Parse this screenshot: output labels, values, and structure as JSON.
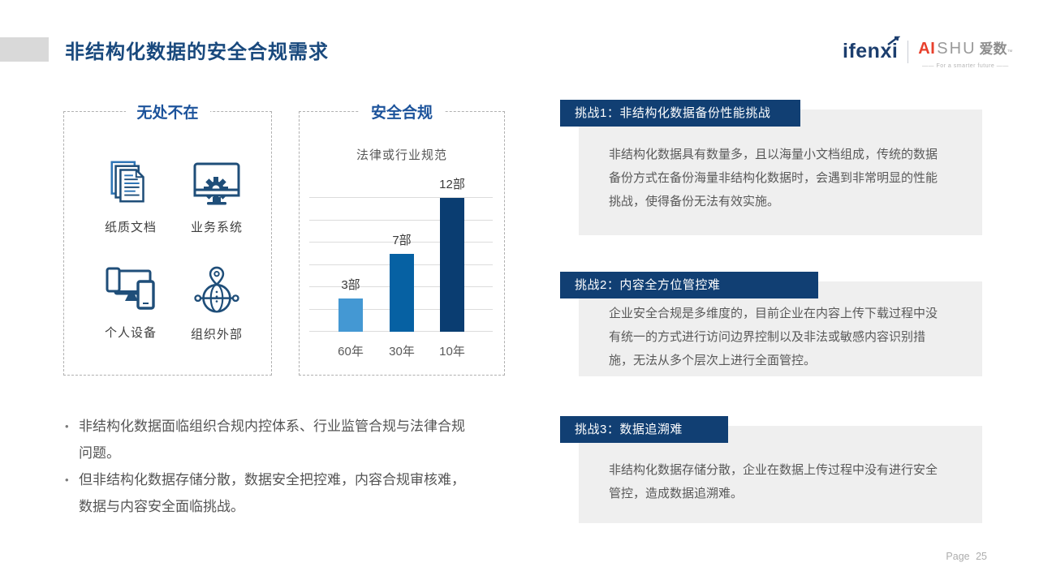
{
  "slide": {
    "title": "非结构化数据的安全合规需求",
    "page_label": "Page 25"
  },
  "logos": {
    "ifenxi": "ifenxi",
    "aishu_ai": "AI",
    "aishu_shu": "SHU",
    "aishu_cn": "爱数",
    "aishu_mark": "™",
    "aishu_tagline": "—— For a smarter future ——"
  },
  "panels": {
    "everywhere": {
      "title": "无处不在",
      "items": [
        {
          "icon": "documents-icon",
          "label": "纸质文档"
        },
        {
          "icon": "business-system-icon",
          "label": "业务系统"
        },
        {
          "icon": "personal-devices-icon",
          "label": "个人设备"
        },
        {
          "icon": "external-organization-icon",
          "label": "组织外部"
        }
      ]
    },
    "compliance": {
      "title": "安全合规"
    }
  },
  "chart_data": {
    "type": "bar",
    "title": "法律或行业规范",
    "categories": [
      "60年",
      "30年",
      "10年"
    ],
    "values": [
      3,
      7,
      12
    ],
    "value_labels": [
      "3部",
      "7部",
      "12部"
    ],
    "bar_colors": [
      "#4498D3",
      "#0661A3",
      "#0A3D71"
    ],
    "ylim": [
      0,
      12
    ],
    "gridlines": [
      0,
      2,
      4,
      6,
      8,
      10,
      12
    ],
    "grid_on": true,
    "legend": "none"
  },
  "challenges": [
    {
      "header": "挑战1：非结构化数据备份性能挑战",
      "body": "非结构化数据具有数量多，且以海量小文档组成，传统的数据备份方式在备份海量非结构化数据时，会遇到非常明显的性能挑战，使得备份无法有效实施。"
    },
    {
      "header": "挑战2：内容全方位管控难",
      "body": "企业安全合规是多维度的，目前企业在内容上传下载过程中没有统一的方式进行访问边界控制以及非法或敏感内容识别措施，无法从多个层次上进行全面管控。"
    },
    {
      "header": "挑战3：数据追溯难",
      "body": "非结构化数据存储分散，企业在数据上传过程中没有进行安全管控，造成数据追溯难。"
    }
  ],
  "bullets": [
    "非结构化数据面临组织合规内控体系、行业监管合规与法律合规问题。",
    "但非结构化数据存储分散，数据安全把控难，内容合规审核难，数据与内容安全面临挑战。"
  ],
  "colors": {
    "title_blue": "#19497D",
    "panel_title_blue": "#1C539B",
    "icon_dark": "#1F4E79",
    "icon_accent": "#2E75B6",
    "challenge_header_bg": "#113F73",
    "challenge_body_bg": "#EFEFEF",
    "body_text": "#595959"
  }
}
